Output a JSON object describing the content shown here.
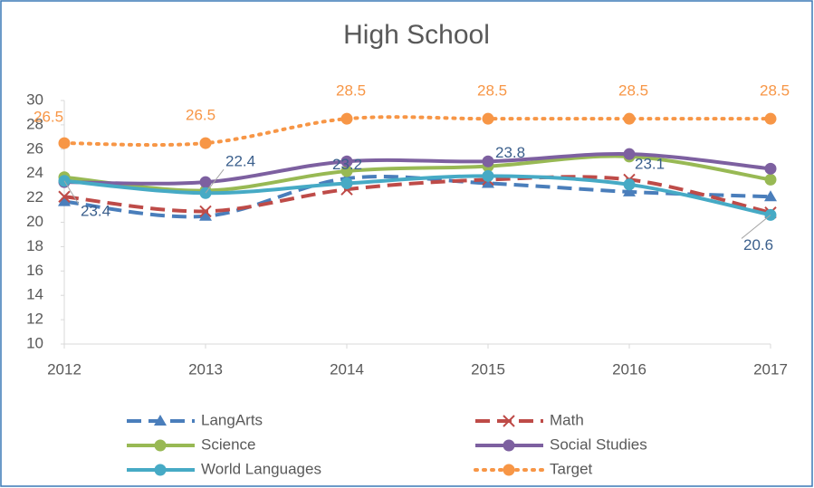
{
  "chart_data": {
    "type": "line",
    "title": "High School",
    "categories": [
      "2012",
      "2013",
      "2014",
      "2015",
      "2016",
      "2017"
    ],
    "ylim": [
      10,
      30
    ],
    "yticks": [
      10,
      12,
      14,
      16,
      18,
      20,
      22,
      24,
      26,
      28,
      30
    ],
    "smooth": true,
    "legend": "bottom",
    "series": [
      {
        "name": "LangArts",
        "color": "#4a7ebb",
        "dash": "dashed",
        "marker": "triangle",
        "values": [
          21.7,
          20.5,
          23.6,
          23.2,
          22.5,
          22.1
        ]
      },
      {
        "name": "Math",
        "color": "#be4b48",
        "dash": "dashed",
        "marker": "x",
        "values": [
          22.1,
          20.9,
          22.7,
          23.5,
          23.5,
          20.8
        ]
      },
      {
        "name": "Science",
        "color": "#98b954",
        "dash": "solid",
        "marker": "circle",
        "values": [
          23.7,
          22.6,
          24.2,
          24.6,
          25.4,
          23.5
        ]
      },
      {
        "name": "Social Studies",
        "color": "#7d60a0",
        "dash": "solid",
        "marker": "circle",
        "values": [
          23.3,
          23.3,
          25.0,
          25.0,
          25.6,
          24.4
        ]
      },
      {
        "name": "World Languages",
        "color": "#46aac5",
        "dash": "solid",
        "marker": "circle",
        "label_color": "#3b5f8c",
        "data_labels": true,
        "values": [
          23.4,
          22.4,
          23.2,
          23.8,
          23.1,
          20.6
        ]
      },
      {
        "name": "Target",
        "color": "#f79646",
        "dash": "dotted",
        "marker": "circle",
        "label_color": "#f79646",
        "data_labels": true,
        "values": [
          26.5,
          26.5,
          28.5,
          28.5,
          28.5,
          28.5
        ]
      }
    ]
  }
}
